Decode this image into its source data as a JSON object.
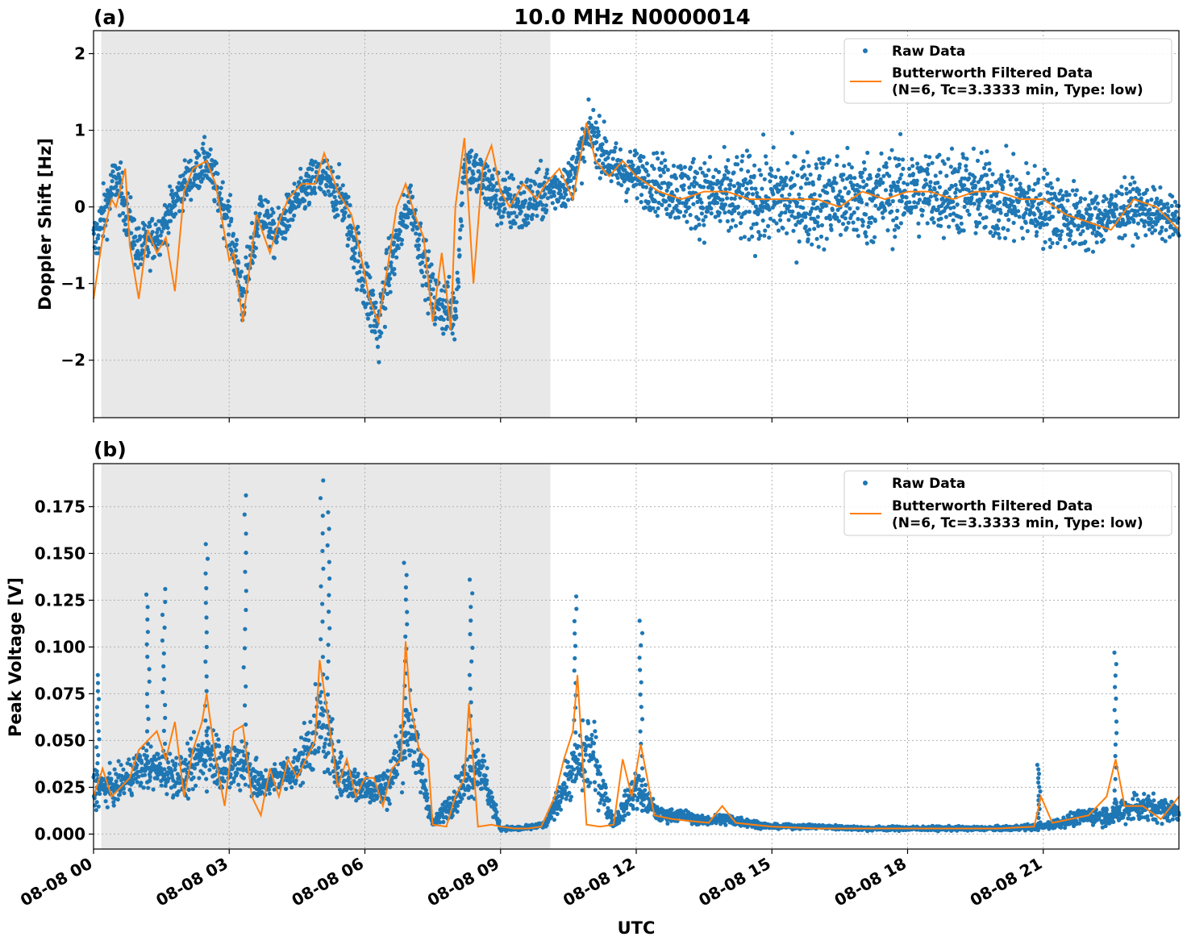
{
  "figure": {
    "title": "10.0 MHz N0000014",
    "xlabel": "UTC",
    "colors": {
      "raw": "#1f77b4",
      "filtered": "#ff7f0e",
      "shade": "#e8e8e8",
      "grid": "#b0b0b0"
    },
    "x_ticks": [
      "08-08 00",
      "08-08 03",
      "08-08 06",
      "08-08 09",
      "08-08 12",
      "08-08 15",
      "08-08 18",
      "08-08 21"
    ],
    "x_range_hours": [
      0,
      24
    ],
    "shaded_span_hours": [
      0.17,
      10.1
    ]
  },
  "chart_data": [
    {
      "type": "scatter",
      "panel": "(a)",
      "ylabel": "Doppler Shift [Hz]",
      "ylim": [
        -2.75,
        2.3
      ],
      "y_ticks": [
        2,
        1,
        0,
        -1,
        -2
      ],
      "y_tick_labels": [
        "2",
        "1",
        "0",
        "−1",
        "−2"
      ],
      "grid": true,
      "legend_position": "top-right",
      "legend": [
        "Raw Data",
        "Butterworth Filtered Data",
        "(N=6, Tc=3.3333 min, Type: low)"
      ],
      "series": [
        {
          "name": "Raw Data",
          "kind": "scatter",
          "x_hours": [
            0.0,
            0.5,
            1.0,
            1.5,
            2.0,
            2.5,
            3.0,
            3.3,
            3.7,
            4.0,
            4.5,
            5.0,
            5.5,
            6.0,
            6.3,
            6.5,
            7.0,
            7.5,
            8.0,
            8.2,
            8.5,
            9.0,
            9.5,
            10.0,
            10.5,
            11.0,
            11.5,
            12.0,
            13.0,
            14.0,
            15.0,
            16.0,
            17.0,
            18.0,
            19.0,
            20.0,
            21.0,
            22.0,
            23.0,
            24.0
          ],
          "y_center": [
            -0.5,
            0.4,
            -0.6,
            -0.3,
            0.3,
            0.6,
            -0.2,
            -1.2,
            0.0,
            -0.4,
            0.1,
            0.4,
            0.1,
            -1.0,
            -1.6,
            -0.9,
            0.1,
            -1.2,
            -1.4,
            0.6,
            0.4,
            0.1,
            0.0,
            0.2,
            0.3,
            1.0,
            0.5,
            0.4,
            0.2,
            0.1,
            0.1,
            0.1,
            0.1,
            0.2,
            0.2,
            0.1,
            0.0,
            -0.2,
            0.0,
            -0.2
          ],
          "y_spread": [
            0.7,
            0.6,
            0.6,
            0.5,
            0.5,
            0.5,
            0.6,
            0.7,
            0.5,
            0.5,
            0.5,
            0.6,
            0.6,
            0.8,
            0.8,
            0.7,
            0.5,
            0.7,
            0.7,
            0.6,
            0.6,
            0.7,
            0.7,
            0.6,
            0.5,
            0.6,
            0.6,
            0.6,
            0.8,
            1.0,
            1.1,
            1.1,
            1.1,
            1.0,
            1.0,
            1.0,
            0.9,
            0.7,
            0.6,
            0.5
          ]
        },
        {
          "name": "Butterworth Filtered Data",
          "kind": "line",
          "x_hours": [
            0.0,
            0.2,
            0.4,
            0.5,
            0.7,
            0.8,
            1.0,
            1.2,
            1.4,
            1.6,
            1.8,
            2.0,
            2.2,
            2.5,
            2.7,
            3.0,
            3.1,
            3.3,
            3.6,
            3.9,
            4.1,
            4.3,
            4.6,
            4.9,
            5.1,
            5.4,
            5.7,
            5.9,
            6.1,
            6.3,
            6.5,
            6.7,
            6.9,
            7.1,
            7.3,
            7.5,
            7.7,
            7.9,
            8.0,
            8.2,
            8.4,
            8.6,
            8.8,
            9.0,
            9.2,
            9.5,
            9.8,
            10.0,
            10.3,
            10.6,
            10.9,
            11.1,
            11.4,
            11.7,
            12.0,
            12.5,
            13.0,
            13.5,
            14.0,
            14.5,
            15.0,
            15.5,
            16.0,
            16.5,
            17.0,
            17.5,
            18.0,
            18.5,
            19.0,
            19.5,
            20.0,
            20.5,
            21.0,
            21.5,
            22.0,
            22.5,
            23.0,
            23.5,
            24.0
          ],
          "y": [
            -1.2,
            -0.4,
            0.1,
            0.0,
            0.5,
            -0.5,
            -1.2,
            -0.3,
            -0.6,
            -0.4,
            -1.1,
            0.2,
            0.5,
            0.6,
            0.3,
            -0.7,
            -0.6,
            -1.5,
            -0.1,
            -0.6,
            -0.2,
            0.1,
            0.3,
            0.3,
            0.7,
            0.2,
            -0.1,
            -0.6,
            -1.2,
            -1.5,
            -0.8,
            0.0,
            0.3,
            -0.1,
            -0.4,
            -1.5,
            -0.6,
            -1.6,
            0.0,
            0.9,
            -1.0,
            0.5,
            0.8,
            0.2,
            0.0,
            0.3,
            0.1,
            0.3,
            0.5,
            0.1,
            1.1,
            0.6,
            0.4,
            0.6,
            0.4,
            0.2,
            0.1,
            0.2,
            0.2,
            0.1,
            0.1,
            0.1,
            0.1,
            0.0,
            0.2,
            0.1,
            0.2,
            0.2,
            0.1,
            0.2,
            0.2,
            0.1,
            0.1,
            -0.1,
            -0.2,
            -0.3,
            0.1,
            0.0,
            -0.3
          ]
        }
      ]
    },
    {
      "type": "scatter",
      "panel": "(b)",
      "ylabel": "Peak Voltage [V]",
      "ylim": [
        -0.008,
        0.198
      ],
      "y_ticks": [
        0.175,
        0.15,
        0.125,
        0.1,
        0.075,
        0.05,
        0.025,
        0.0
      ],
      "y_tick_labels": [
        "0.175",
        "0.150",
        "0.125",
        "0.100",
        "0.075",
        "0.050",
        "0.025",
        "0.000"
      ],
      "grid": true,
      "legend_position": "top-right",
      "legend": [
        "Raw Data",
        "Butterworth Filtered Data",
        "(N=6, Tc=3.3333 min, Type: low)"
      ],
      "series": [
        {
          "name": "Raw Data",
          "kind": "scatter",
          "x_hours": [
            0.0,
            0.5,
            1.0,
            1.5,
            2.0,
            2.5,
            3.0,
            3.3,
            3.7,
            4.0,
            4.5,
            5.0,
            5.5,
            6.0,
            6.5,
            7.0,
            7.5,
            8.0,
            8.5,
            9.0,
            9.5,
            10.0,
            10.5,
            11.0,
            11.5,
            12.0,
            12.5,
            13.0,
            13.5,
            14.0,
            15.0,
            16.0,
            17.0,
            18.0,
            19.0,
            20.0,
            21.0,
            22.0,
            22.5,
            23.0,
            24.0
          ],
          "y_center": [
            0.025,
            0.025,
            0.035,
            0.035,
            0.03,
            0.045,
            0.035,
            0.04,
            0.025,
            0.03,
            0.035,
            0.06,
            0.03,
            0.025,
            0.025,
            0.06,
            0.005,
            0.02,
            0.04,
            0.003,
            0.003,
            0.005,
            0.03,
            0.045,
            0.005,
            0.025,
            0.01,
            0.01,
            0.007,
            0.008,
            0.004,
            0.004,
            0.003,
            0.003,
            0.003,
            0.003,
            0.004,
            0.01,
            0.01,
            0.015,
            0.012
          ],
          "y_spread": [
            0.02,
            0.015,
            0.02,
            0.02,
            0.02,
            0.03,
            0.025,
            0.03,
            0.015,
            0.015,
            0.02,
            0.04,
            0.02,
            0.015,
            0.02,
            0.04,
            0.003,
            0.015,
            0.03,
            0.002,
            0.002,
            0.003,
            0.02,
            0.04,
            0.004,
            0.02,
            0.006,
            0.006,
            0.004,
            0.006,
            0.002,
            0.002,
            0.002,
            0.002,
            0.002,
            0.002,
            0.003,
            0.008,
            0.01,
            0.015,
            0.01
          ],
          "spikes": [
            [
              0.1,
              0.085
            ],
            [
              1.2,
              0.128
            ],
            [
              1.55,
              0.131
            ],
            [
              2.5,
              0.155
            ],
            [
              3.35,
              0.181
            ],
            [
              5.05,
              0.189
            ],
            [
              5.2,
              0.172
            ],
            [
              6.9,
              0.145
            ],
            [
              8.35,
              0.136
            ],
            [
              10.65,
              0.127
            ],
            [
              12.1,
              0.114
            ],
            [
              22.6,
              0.097
            ],
            [
              20.9,
              0.037
            ]
          ]
        },
        {
          "name": "Butterworth Filtered Data",
          "kind": "line",
          "x_hours": [
            0.0,
            0.2,
            0.4,
            0.6,
            0.8,
            1.0,
            1.2,
            1.4,
            1.6,
            1.8,
            2.0,
            2.2,
            2.4,
            2.5,
            2.7,
            2.9,
            3.1,
            3.3,
            3.5,
            3.7,
            3.9,
            4.1,
            4.3,
            4.5,
            4.7,
            4.9,
            5.0,
            5.2,
            5.4,
            5.6,
            5.8,
            6.0,
            6.2,
            6.4,
            6.6,
            6.8,
            6.9,
            7.0,
            7.2,
            7.4,
            7.5,
            7.8,
            8.0,
            8.2,
            8.3,
            8.5,
            8.8,
            9.0,
            9.3,
            9.6,
            9.9,
            10.2,
            10.4,
            10.6,
            10.7,
            10.9,
            11.2,
            11.5,
            11.7,
            11.9,
            12.1,
            12.4,
            12.8,
            13.2,
            13.6,
            13.9,
            14.2,
            15.0,
            16.0,
            17.0,
            18.0,
            19.0,
            20.0,
            20.8,
            20.95,
            21.2,
            21.6,
            22.0,
            22.4,
            22.6,
            22.8,
            23.2,
            23.6,
            24.0
          ],
          "y": [
            0.02,
            0.035,
            0.02,
            0.025,
            0.03,
            0.045,
            0.05,
            0.055,
            0.04,
            0.06,
            0.02,
            0.045,
            0.06,
            0.075,
            0.04,
            0.015,
            0.055,
            0.058,
            0.02,
            0.01,
            0.035,
            0.02,
            0.04,
            0.03,
            0.04,
            0.05,
            0.093,
            0.06,
            0.025,
            0.04,
            0.02,
            0.03,
            0.03,
            0.015,
            0.035,
            0.04,
            0.103,
            0.07,
            0.045,
            0.04,
            0.005,
            0.004,
            0.02,
            0.03,
            0.07,
            0.004,
            0.005,
            0.004,
            0.003,
            0.003,
            0.004,
            0.02,
            0.04,
            0.055,
            0.085,
            0.005,
            0.004,
            0.005,
            0.04,
            0.02,
            0.048,
            0.01,
            0.008,
            0.007,
            0.006,
            0.015,
            0.006,
            0.004,
            0.003,
            0.003,
            0.003,
            0.003,
            0.003,
            0.004,
            0.02,
            0.006,
            0.008,
            0.01,
            0.02,
            0.04,
            0.015,
            0.015,
            0.008,
            0.02
          ]
        }
      ]
    }
  ]
}
